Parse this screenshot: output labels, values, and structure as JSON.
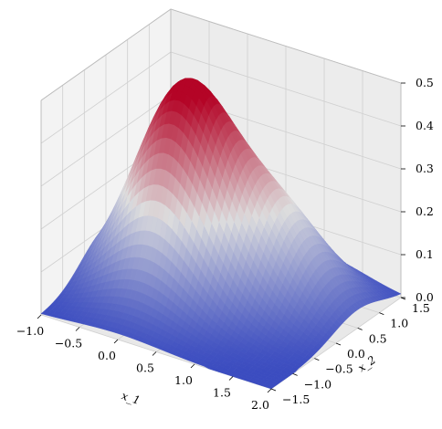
{
  "chart_data": {
    "type": "surface3d",
    "title": "",
    "xlabel": "x_1",
    "ylabel": "x_2",
    "zlabel": "",
    "xlim": [
      -1.0,
      2.0
    ],
    "ylim": [
      -1.5,
      1.5
    ],
    "zlim": [
      0.0,
      0.5
    ],
    "x_ticks": [
      "−1.0",
      "−0.5",
      "0.0",
      "0.5",
      "1.0",
      "1.5",
      "2.0"
    ],
    "x_tick_values": [
      -1.0,
      -0.5,
      0.0,
      0.5,
      1.0,
      1.5,
      2.0
    ],
    "y_ticks": [
      "−1.5",
      "−1.0",
      "−0.5",
      "0.0",
      "0.5",
      "1.0",
      "1.5"
    ],
    "y_tick_values": [
      -1.5,
      -1.0,
      -0.5,
      0.0,
      0.5,
      1.0,
      1.5
    ],
    "z_ticks": [
      "0.0",
      "0.1",
      "0.2",
      "0.3",
      "0.4",
      "0.5"
    ],
    "z_tick_values": [
      0.0,
      0.1,
      0.2,
      0.3,
      0.4,
      0.5
    ],
    "colormap": "coolwarm",
    "colormap_stops": [
      "#3b4cc0",
      "#dddddd",
      "#b40426"
    ],
    "grid": true,
    "pane_color": "#f2f2f2",
    "peaks": [
      {
        "x1": 0.0,
        "x2": 0.0,
        "z": 0.47
      },
      {
        "x1": 1.0,
        "x2": 0.5,
        "z": 0.2
      }
    ]
  }
}
